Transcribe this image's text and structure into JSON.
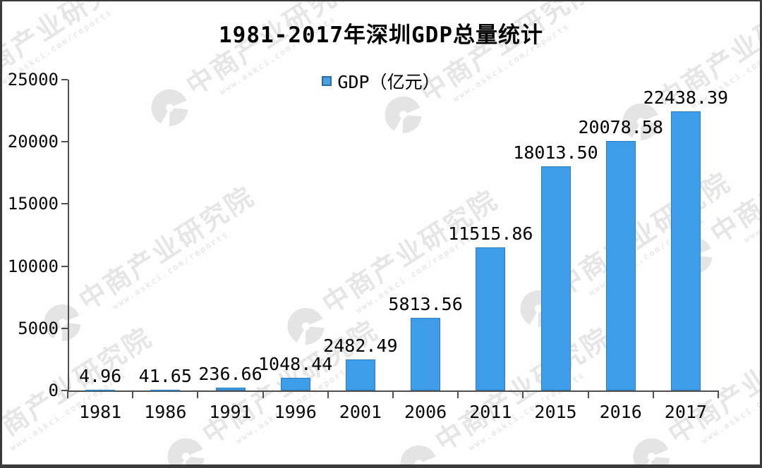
{
  "chart_data": {
    "type": "bar",
    "title": "1981-2017年深圳GDP总量统计",
    "legend": "GDP（亿元）",
    "legend_position": "top-center",
    "categories": [
      "1981",
      "1986",
      "1991",
      "1996",
      "2001",
      "2006",
      "2011",
      "2015",
      "2016",
      "2017"
    ],
    "values": [
      4.96,
      41.65,
      236.66,
      1048.44,
      2482.49,
      5813.56,
      11515.86,
      18013.5,
      20078.58,
      22438.39
    ],
    "value_labels": [
      "4.96",
      "41.65",
      "236.66",
      "1048.44",
      "2482.49",
      "5813.56",
      "11515.86",
      "18013.50",
      "20078.58",
      "22438.39"
    ],
    "xlabel": "",
    "ylabel": "",
    "ylim": [
      0,
      25000
    ],
    "yticks": [
      0,
      5000,
      10000,
      15000,
      20000,
      25000
    ],
    "grid": false,
    "bar_color": "#3e9ce9",
    "bar_border_color": "#2d7dbd",
    "axis_color": "#4f4f4f",
    "text_color": "#000000"
  },
  "watermark": {
    "text": "中商产业研究院",
    "subtext": "www.askci.com/reports"
  }
}
